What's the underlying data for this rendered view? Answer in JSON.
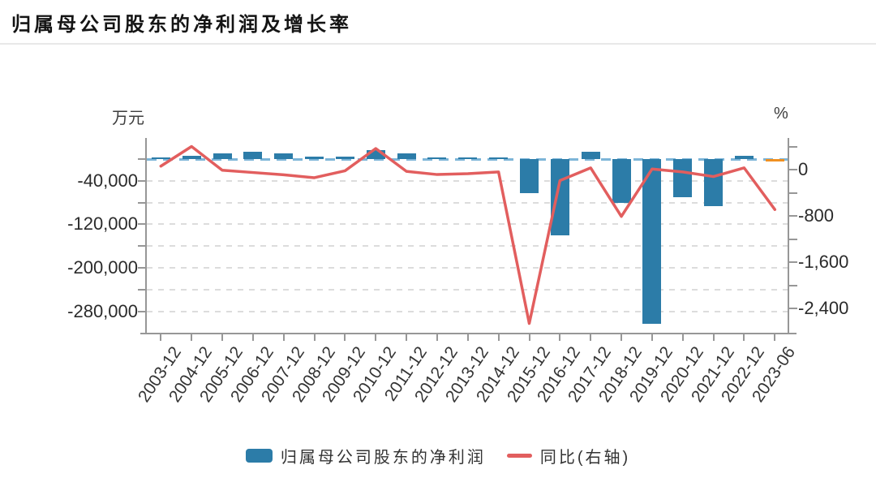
{
  "header": {
    "title": "归属母公司股东的净利润及增长率"
  },
  "chart_data": {
    "type": "bar+line",
    "title": "归属母公司股东的净利润及增长率",
    "categories": [
      "2003-12",
      "2004-12",
      "2005-12",
      "2006-12",
      "2007-12",
      "2008-12",
      "2009-12",
      "2010-12",
      "2011-12",
      "2012-12",
      "2013-12",
      "2014-12",
      "2015-12",
      "2016-12",
      "2017-12",
      "2018-12",
      "2019-12",
      "2020-12",
      "2021-12",
      "2022-12",
      "2023-06"
    ],
    "series": [
      {
        "name": "归属母公司股东的净利润",
        "type": "bar",
        "yaxis": "left",
        "unit": "万元",
        "color": "#2c7ca8",
        "last_bar_color": "#f09021",
        "values": [
          500,
          6000,
          11000,
          13500,
          11000,
          4000,
          5000,
          17000,
          10000,
          3000,
          3500,
          3500,
          -62000,
          -140000,
          13000,
          -80000,
          -303000,
          -70000,
          -87000,
          6000,
          -1500
        ]
      },
      {
        "name": "同比(右轴)",
        "type": "line",
        "yaxis": "right",
        "unit": "%",
        "color": "#e25e5e",
        "values": [
          60,
          400,
          -10,
          -50,
          -90,
          -140,
          -20,
          365,
          -30,
          -85,
          -70,
          -40,
          -2660,
          -190,
          30,
          -810,
          10,
          -40,
          -120,
          30,
          -690
        ]
      }
    ],
    "left_axis": {
      "unit_label": "万元",
      "tick_labels": [
        "-40,000",
        "-120,000",
        "-200,000",
        "-280,000"
      ],
      "tick_values": [
        -40000,
        -120000,
        -200000,
        -280000
      ],
      "minor_tick_values": [
        0,
        -80000,
        -160000,
        -240000
      ],
      "range": [
        -320000,
        40000
      ]
    },
    "right_axis": {
      "unit_label": "%",
      "tick_labels": [
        "0",
        "-800",
        "-1,600",
        "-2,400"
      ],
      "tick_values": [
        0,
        -800,
        -1600,
        -2400
      ],
      "minor_tick_values": [
        400,
        -400,
        -1200,
        -2000
      ],
      "range": [
        -2820,
        550
      ]
    },
    "legend": [
      {
        "label": "归属母公司股东的净利润",
        "swatch": "bar",
        "color": "#2c7ca8"
      },
      {
        "label": "同比(右轴)",
        "swatch": "line",
        "color": "#e25e5e"
      }
    ],
    "zero_line": {
      "axis": "left",
      "value": 0,
      "style": "dashed",
      "color": "#7db5d8"
    },
    "grid": {
      "horizontal_dashed": true,
      "color": "#dcdcdc"
    }
  }
}
